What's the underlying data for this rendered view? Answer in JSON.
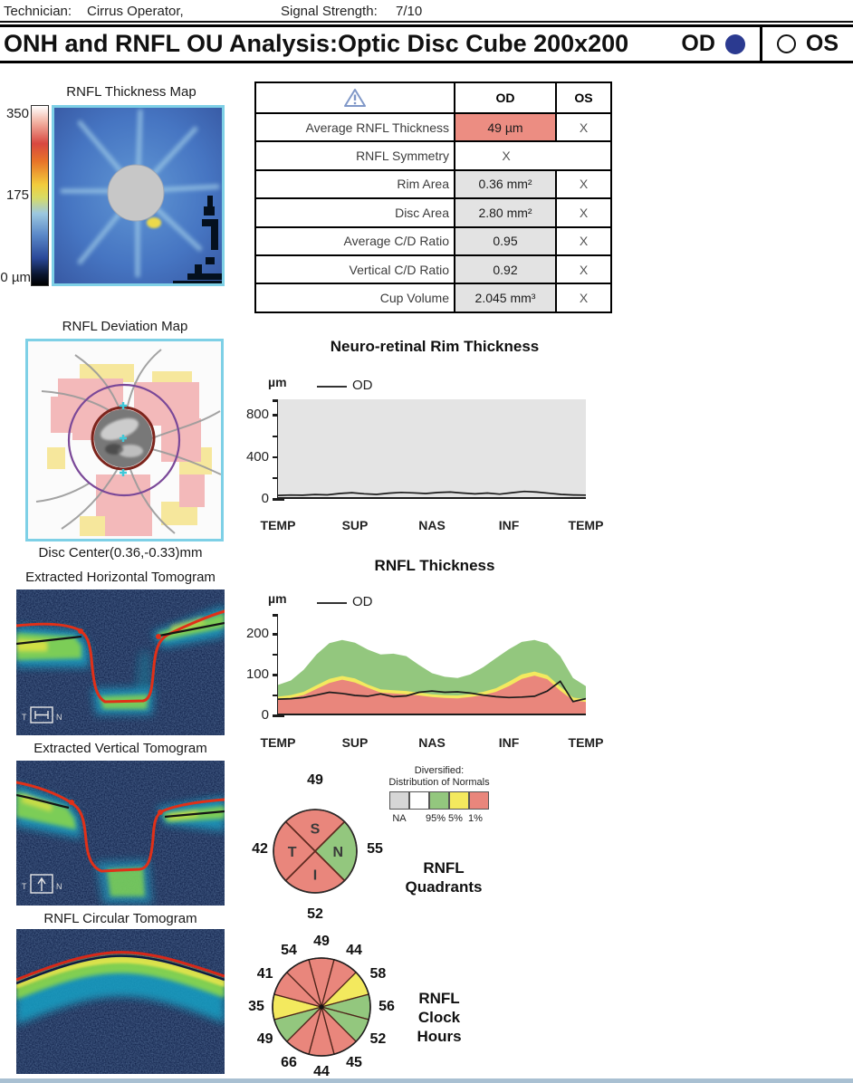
{
  "page": {
    "bottom_bar_color": "#a9c0d2"
  },
  "header": {
    "technician_label": "Technician:",
    "technician_value": "Cirrus Operator,",
    "signal_label": "Signal Strength:",
    "signal_value": "7/10"
  },
  "title_bar": {
    "title": "ONH and RNFL OU Analysis:Optic Disc Cube 200x200",
    "od_label": "OD",
    "os_label": "OS",
    "od_selected": true,
    "selected_color": "#2b3a90"
  },
  "left_column": {
    "thickness_map": {
      "title": "RNFL Thickness Map",
      "scale_max": "350",
      "scale_mid": "175",
      "scale_min": "0 µm"
    },
    "deviation_map": {
      "title": "RNFL Deviation Map",
      "caption": "Disc Center(0.36,-0.33)mm"
    },
    "horizontal_tomogram": {
      "title": "Extracted Horizontal Tomogram",
      "left_marker": "T",
      "right_marker": "N"
    },
    "vertical_tomogram": {
      "title": "Extracted Vertical Tomogram",
      "left_marker": "T",
      "right_marker": "N"
    },
    "circular_tomogram": {
      "title": "RNFL Circular Tomogram"
    }
  },
  "summary_table": {
    "col_od": "OD",
    "col_os": "OS",
    "rows": [
      {
        "label": "Average RNFL Thickness",
        "od": "49 µm",
        "os": "X",
        "od_bg": "#ec8d82"
      },
      {
        "label": "RNFL Symmetry",
        "merged": "X"
      },
      {
        "label": "Rim Area",
        "od": "0.36 mm²",
        "os": "X",
        "od_bg": "#e3e3e3"
      },
      {
        "label": "Disc Area",
        "od": "2.80 mm²",
        "os": "X",
        "od_bg": "#e3e3e3"
      },
      {
        "label": "Average C/D Ratio",
        "od": "0.95",
        "os": "X",
        "od_bg": "#e3e3e3"
      },
      {
        "label": "Vertical C/D Ratio",
        "od": "0.92",
        "os": "X",
        "od_bg": "#e3e3e3"
      },
      {
        "label": "Cup Volume",
        "od": "2.045 mm³",
        "os": "X",
        "od_bg": "#e3e3e3"
      }
    ]
  },
  "normals_legend": {
    "title_line1": "Diversified:",
    "title_line2": "Distribution of Normals",
    "swatches": [
      {
        "color": "#d6d6d6",
        "label": "NA"
      },
      {
        "color": "#ffffff",
        "label": ""
      },
      {
        "color": "#93c77e",
        "label": "95%"
      },
      {
        "color": "#f3e95e",
        "label": "5%"
      },
      {
        "color": "#e9867c",
        "label": "1%"
      }
    ]
  },
  "status_colors": {
    "red": "#e9867c",
    "green": "#93c77e",
    "yellow": "#f3e95e",
    "gray": "#d6d6d6",
    "white": "#ffffff"
  },
  "chart_data": [
    {
      "id": "rim_thickness",
      "type": "line",
      "title": "Neuro-retinal Rim Thickness",
      "unit": "µm",
      "legend": "OD",
      "ylim": [
        0,
        950
      ],
      "yticks": [
        0,
        400,
        800
      ],
      "yticks_all": [
        0,
        200,
        400,
        600,
        800
      ],
      "x_categories": [
        "TEMP",
        "SUP",
        "NAS",
        "INF",
        "TEMP"
      ],
      "plot_bg": "#e4e4e4",
      "series": [
        {
          "name": "OD",
          "values": [
            34,
            37,
            35,
            42,
            39,
            52,
            60,
            49,
            43,
            55,
            62,
            58,
            52,
            61,
            66,
            56,
            48,
            56,
            46,
            60,
            72,
            66,
            54,
            43,
            38,
            36
          ]
        }
      ]
    },
    {
      "id": "rnfl_thickness",
      "type": "line",
      "title": "RNFL Thickness",
      "unit": "µm",
      "legend": "OD",
      "ylim": [
        0,
        250
      ],
      "yticks": [
        0,
        100,
        200
      ],
      "yticks_all": [
        0,
        50,
        100,
        150,
        200
      ],
      "x_categories": [
        "TEMP",
        "SUP",
        "NAS",
        "INF",
        "TEMP"
      ],
      "plot_bg": "#ffffff",
      "bands": {
        "green_upper": [
          75,
          86,
          112,
          150,
          178,
          186,
          179,
          162,
          150,
          152,
          146,
          124,
          104,
          95,
          92,
          101,
          119,
          141,
          163,
          181,
          186,
          177,
          146,
          92,
          72
        ],
        "yellow_upper": [
          46,
          50,
          58,
          74,
          90,
          97,
          91,
          76,
          64,
          62,
          60,
          56,
          52,
          50,
          49,
          52,
          58,
          67,
          83,
          101,
          108,
          99,
          71,
          44,
          40
        ],
        "red_upper": [
          38,
          43,
          50,
          65,
          80,
          88,
          81,
          68,
          56,
          54,
          52,
          49,
          45,
          43,
          42,
          45,
          50,
          58,
          72,
          90,
          98,
          89,
          61,
          37,
          33
        ]
      },
      "series": [
        {
          "name": "OD",
          "values": [
            40,
            41,
            44,
            50,
            57,
            54,
            49,
            47,
            53,
            46,
            48,
            57,
            60,
            57,
            58,
            55,
            50,
            46,
            44,
            45,
            47,
            60,
            84,
            34,
            41
          ]
        }
      ]
    },
    {
      "id": "rnfl_quadrants",
      "type": "pie-quadrants",
      "label_lines": [
        "RNFL",
        "Quadrants"
      ],
      "segments": [
        {
          "letter": "S",
          "value": 49,
          "status": "red"
        },
        {
          "letter": "N",
          "value": 55,
          "status": "green"
        },
        {
          "letter": "I",
          "value": 52,
          "status": "red"
        },
        {
          "letter": "T",
          "value": 42,
          "status": "red"
        }
      ]
    },
    {
      "id": "rnfl_clock_hours",
      "type": "pie-clock",
      "label_lines": [
        "RNFL",
        "Clock",
        "Hours"
      ],
      "segments": [
        {
          "hour": 12,
          "value": 49,
          "status": "red"
        },
        {
          "hour": 1,
          "value": 44,
          "status": "red"
        },
        {
          "hour": 2,
          "value": 58,
          "status": "yellow"
        },
        {
          "hour": 3,
          "value": 56,
          "status": "green"
        },
        {
          "hour": 4,
          "value": 52,
          "status": "green"
        },
        {
          "hour": 5,
          "value": 45,
          "status": "red"
        },
        {
          "hour": 6,
          "value": 44,
          "status": "red"
        },
        {
          "hour": 7,
          "value": 66,
          "status": "red"
        },
        {
          "hour": 8,
          "value": 49,
          "status": "green"
        },
        {
          "hour": 9,
          "value": 35,
          "status": "yellow"
        },
        {
          "hour": 10,
          "value": 41,
          "status": "red"
        },
        {
          "hour": 11,
          "value": 54,
          "status": "red"
        }
      ]
    }
  ]
}
